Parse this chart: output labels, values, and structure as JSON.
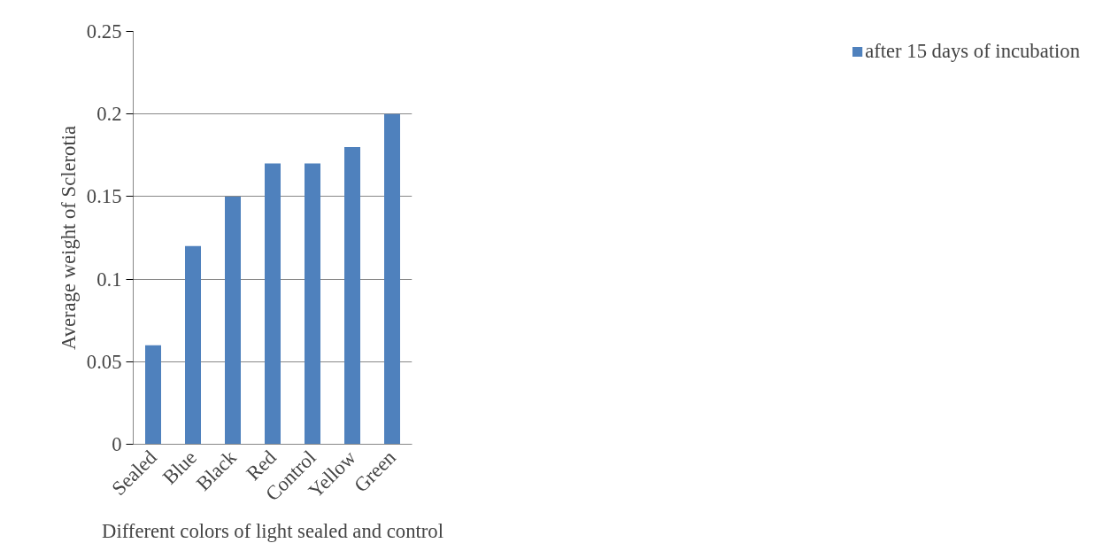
{
  "chart_data": {
    "type": "bar",
    "xlabel": "Different colors of light sealed and control",
    "ylabel": "Average weight of Sclerotia",
    "categories": [
      "Sealed",
      "Blue",
      "Black",
      "Red",
      "Control",
      "Yellow",
      "Green"
    ],
    "series": [
      {
        "name": "after 15 days of incubation",
        "color": "#4f81bd",
        "values": [
          0.06,
          0.12,
          0.15,
          0.17,
          0.17,
          0.18,
          0.2
        ]
      }
    ],
    "ylim": [
      0,
      0.25
    ],
    "yticks": [
      0,
      0.05,
      0.1,
      0.15,
      0.2,
      0.25
    ],
    "grid": "y",
    "legend": "right"
  }
}
